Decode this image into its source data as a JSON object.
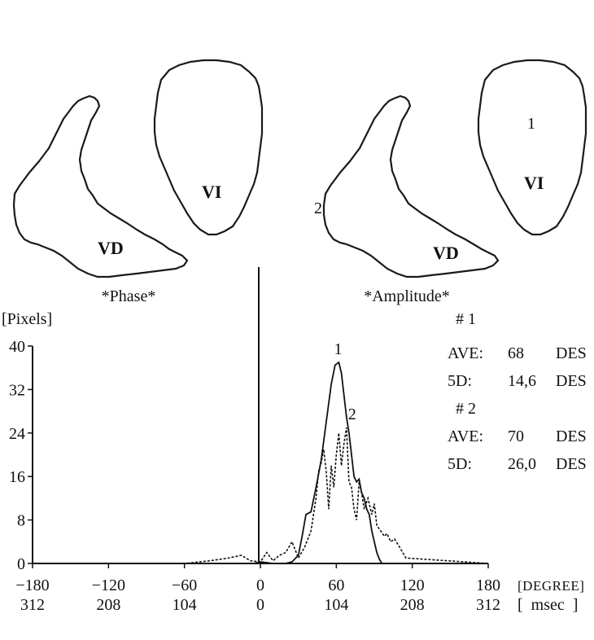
{
  "panels": {
    "phase": {
      "caption": "*Phase*",
      "region_labels": [
        "VD",
        "VI"
      ]
    },
    "amplitude": {
      "caption": "*Amplitude*",
      "region_labels": [
        "VD",
        "VI"
      ],
      "markers": [
        "1",
        "2"
      ]
    }
  },
  "stats": [
    {
      "id": "# 1",
      "rows": [
        {
          "label": "AVE:",
          "value": "68",
          "unit": "DES"
        },
        {
          "label": "5D:",
          "value": "14,6",
          "unit": "DES"
        }
      ]
    },
    {
      "id": "# 2",
      "rows": [
        {
          "label": "AVE:",
          "value": "70",
          "unit": "DES"
        },
        {
          "label": "5D:",
          "value": "26,0",
          "unit": "DES"
        }
      ]
    }
  ],
  "chart_data": {
    "type": "line",
    "ylabel": "[Pixels]",
    "ylim": [
      0,
      40
    ],
    "xlim": [
      -180,
      180
    ],
    "y_ticks": [
      0,
      8,
      16,
      24,
      32,
      40
    ],
    "x_ticks": [
      -180,
      -120,
      -60,
      0,
      60,
      120,
      180
    ],
    "x_tick_labels": [
      "−180",
      "−120",
      "−60",
      "0",
      "60",
      "120",
      "180"
    ],
    "x_unit_label": "[DEGREE]",
    "x_secondary_ticks": [
      "312",
      "208",
      "104",
      "0",
      "104",
      "208",
      "312"
    ],
    "x_secondary_unit_label": "[  msec  ]",
    "series": [
      {
        "name": "1",
        "style": "solid",
        "x": [
          -180,
          -5,
          0,
          10,
          20,
          25,
          30,
          33,
          36,
          40,
          44,
          48,
          52,
          56,
          59,
          62,
          64,
          66,
          68,
          70,
          72,
          74,
          76,
          78,
          80,
          82,
          84,
          86,
          88,
          90,
          92,
          94,
          96,
          180
        ],
        "y": [
          0,
          0,
          0.3,
          0,
          0,
          0.3,
          1.5,
          5,
          9,
          9.5,
          14,
          19,
          26,
          33,
          36.5,
          37,
          35,
          31,
          27,
          24,
          20,
          16,
          15,
          15.5,
          13,
          12,
          10,
          9,
          6,
          4,
          2,
          0.8,
          0,
          0
        ]
      },
      {
        "name": "2",
        "style": "dashed",
        "x": [
          -180,
          -120,
          -60,
          -40,
          -25,
          -15,
          -8,
          0,
          5,
          10,
          15,
          20,
          25,
          30,
          35,
          40,
          44,
          46,
          48,
          50,
          52,
          54,
          56,
          58,
          60,
          62,
          64,
          66,
          68,
          70,
          72,
          74,
          76,
          78,
          80,
          82,
          85,
          88,
          90,
          92,
          95,
          98,
          100,
          103,
          106,
          110,
          115,
          180
        ],
        "y": [
          0,
          0,
          0,
          0.5,
          1,
          1.5,
          0.5,
          0.3,
          2,
          0.5,
          1.5,
          2,
          4,
          1,
          3,
          6,
          12,
          17,
          18.5,
          21,
          17,
          10,
          18,
          14,
          20,
          24,
          18,
          22,
          25,
          15,
          14,
          10,
          8,
          15,
          13,
          10,
          12,
          9,
          11,
          7,
          6,
          5,
          5.5,
          4,
          4.5,
          3,
          1,
          0
        ]
      }
    ],
    "peak_labels": [
      {
        "text": "1",
        "series": 0
      },
      {
        "text": "2",
        "series": 1
      }
    ],
    "grid": false,
    "legend": "none"
  }
}
